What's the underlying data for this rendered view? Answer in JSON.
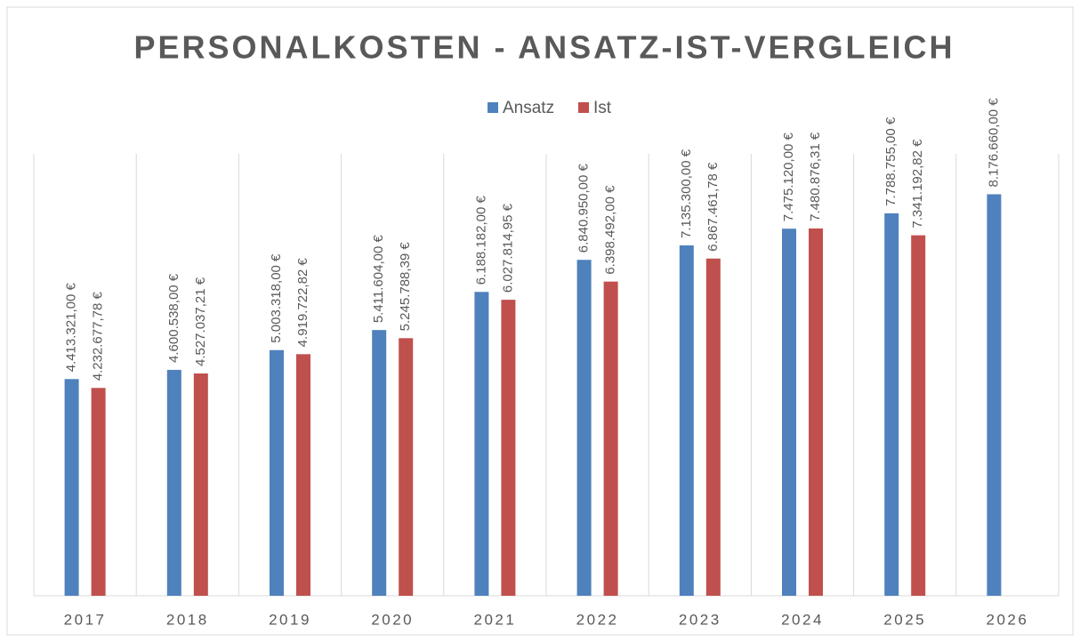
{
  "chart_data": {
    "type": "bar",
    "title": "PERSONALKOSTEN - ANSATZ-IST-VERGLEICH",
    "categories": [
      "2017",
      "2018",
      "2019",
      "2020",
      "2021",
      "2022",
      "2023",
      "2024",
      "2025",
      "2026"
    ],
    "series": [
      {
        "name": "Ansatz",
        "color": "#4f81bd",
        "values": [
          4413321,
          4600538,
          5003318,
          5411604,
          6188182,
          6840950,
          7135300,
          7475120,
          7788755,
          8176660
        ],
        "value_labels": [
          "4.413.321,00 €",
          "4.600.538,00 €",
          "5.003.318,00 €",
          "5.411.604,00 €",
          "6.188.182,00 €",
          "6.840.950,00 €",
          "7.135.300,00 €",
          "7.475.120,00 €",
          "7.788.755,00 €",
          "8.176.660,00 €"
        ]
      },
      {
        "name": "Ist",
        "color": "#c0504d",
        "values": [
          4232677.78,
          4527037.21,
          4919722.82,
          5245788.39,
          6027814.95,
          6398492,
          6867461.78,
          7480876.31,
          7341192.82,
          null
        ],
        "value_labels": [
          "4.232.677,78 €",
          "4.527.037,21 €",
          "4.919.722,82 €",
          "5.245.788,39 €",
          "6.027.814,95 €",
          "6.398.492,00 €",
          "6.867.461,78 €",
          "7.480.876,31 €",
          "7.341.192,82 €",
          null
        ]
      }
    ],
    "ylim": [
      0,
      9000000
    ],
    "legend": "top",
    "grid": true
  }
}
